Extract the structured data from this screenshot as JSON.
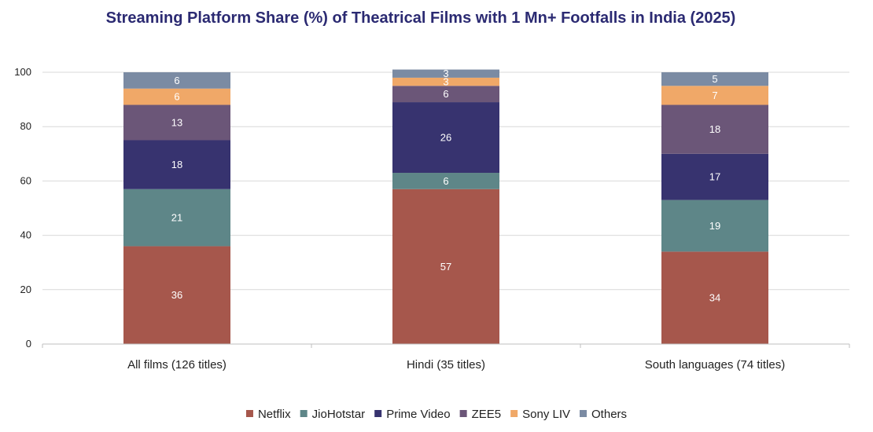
{
  "chart_data": {
    "type": "bar",
    "stacked": true,
    "title": "Streaming Platform Share (%) of Theatrical Films with 1 Mn+ Footfalls in India (2025)",
    "xlabel": "",
    "ylabel": "",
    "ylim": [
      0,
      100
    ],
    "yticks": [
      0,
      20,
      40,
      60,
      80,
      100
    ],
    "grid": true,
    "legend_position": "bottom",
    "categories": [
      "All films (126 titles)",
      "Hindi (35 titles)",
      "South languages (74 titles)"
    ],
    "series": [
      {
        "name": "Netflix",
        "color": "#a6574c",
        "values": [
          36,
          57,
          34
        ]
      },
      {
        "name": "JioHotstar",
        "color": "#5e8688",
        "values": [
          21,
          6,
          19
        ]
      },
      {
        "name": "Prime Video",
        "color": "#37336f",
        "values": [
          18,
          26,
          17
        ]
      },
      {
        "name": "ZEE5",
        "color": "#6b5678",
        "values": [
          13,
          6,
          18
        ]
      },
      {
        "name": "Sony LIV",
        "color": "#f0a868",
        "values": [
          6,
          3,
          7
        ]
      },
      {
        "name": "Others",
        "color": "#7b8ba3",
        "values": [
          6,
          3,
          5
        ]
      }
    ]
  }
}
